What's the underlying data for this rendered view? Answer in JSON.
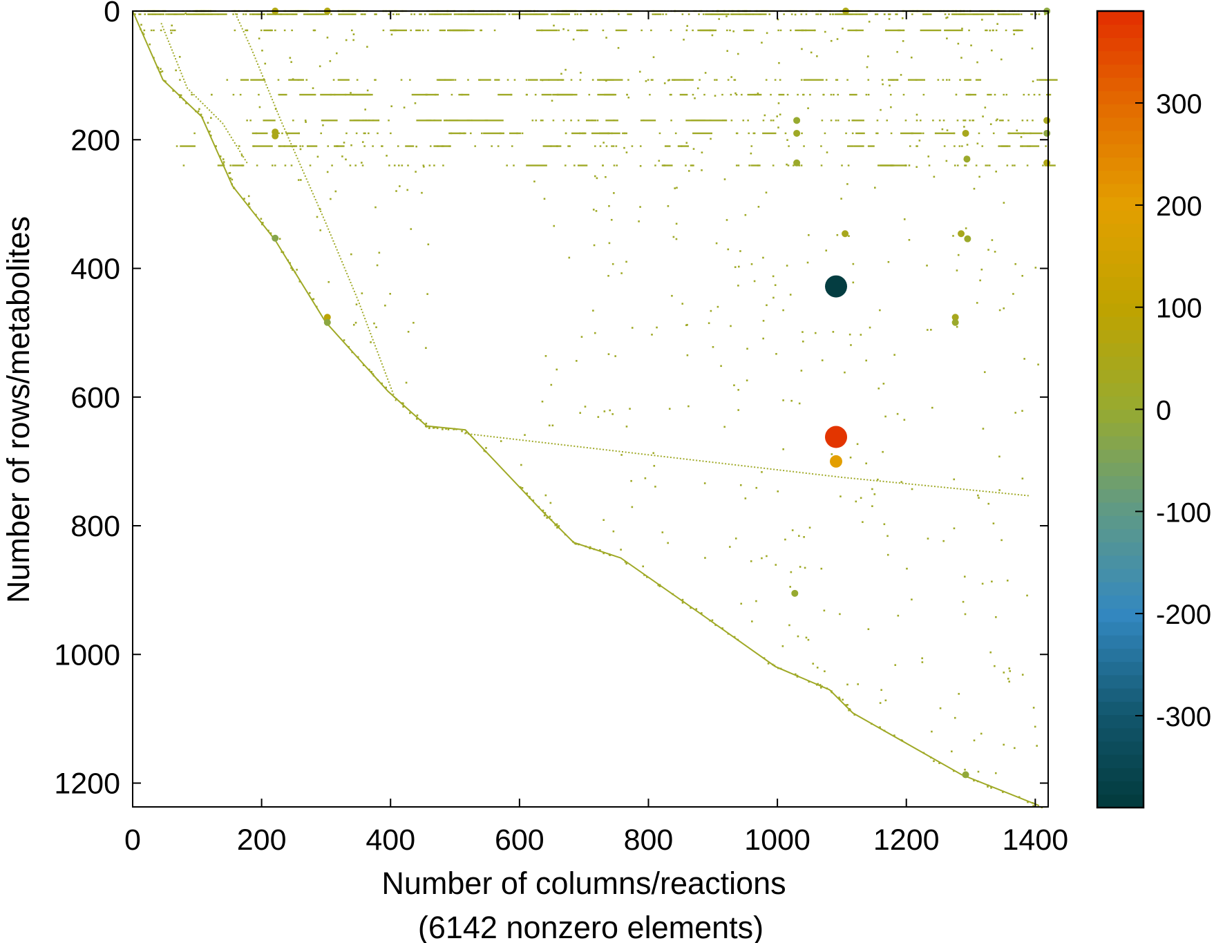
{
  "chart_data": {
    "type": "scatter",
    "title": "",
    "xlabel": "Number of columns/reactions",
    "xlabel_line2": "(6142 nonzero elements)",
    "ylabel": "Number of rows/metabolites",
    "xlim": [
      0,
      1420
    ],
    "ylim": [
      1237,
      0
    ],
    "y_inverted": true,
    "grid": false,
    "xticks": [
      0,
      200,
      400,
      600,
      800,
      1000,
      1200,
      1400
    ],
    "yticks": [
      0,
      200,
      400,
      600,
      800,
      1000,
      1200
    ],
    "nonzero_count": 6142,
    "default_color_value": 20,
    "colorbar": {
      "range": [
        -390,
        390
      ],
      "ticks": [
        -300,
        -200,
        -100,
        0,
        100,
        200,
        300
      ],
      "stops": [
        {
          "value": -390,
          "color": "#023a3c"
        },
        {
          "value": -300,
          "color": "#12566c"
        },
        {
          "value": -200,
          "color": "#3388c0"
        },
        {
          "value": -100,
          "color": "#5f9a86"
        },
        {
          "value": 0,
          "color": "#97aa30"
        },
        {
          "value": 100,
          "color": "#bfa300"
        },
        {
          "value": 200,
          "color": "#e39f00"
        },
        {
          "value": 300,
          "color": "#e36a00"
        },
        {
          "value": 390,
          "color": "#e32e00"
        }
      ]
    },
    "main_diagonal": [
      [
        0,
        0
      ],
      [
        47,
        107
      ],
      [
        107,
        164
      ],
      [
        155,
        272
      ],
      [
        221,
        356
      ],
      [
        299,
        483
      ],
      [
        396,
        591
      ],
      [
        456,
        645
      ],
      [
        516,
        651
      ],
      [
        636,
        778
      ],
      [
        684,
        826
      ],
      [
        757,
        850
      ],
      [
        877,
        934
      ],
      [
        997,
        1019
      ],
      [
        1081,
        1055
      ],
      [
        1117,
        1091
      ],
      [
        1286,
        1187
      ],
      [
        1406,
        1235
      ]
    ],
    "secondary_diagonals": [
      [
        [
          45,
          20
        ],
        [
          85,
          120
        ],
        [
          140,
          175
        ],
        [
          180,
          240
        ]
      ],
      [
        [
          160,
          5
        ],
        [
          185,
          60
        ],
        [
          230,
          170
        ],
        [
          300,
          330
        ],
        [
          350,
          450
        ],
        [
          410,
          610
        ]
      ],
      [
        [
          516,
          657
        ],
        [
          800,
          690
        ],
        [
          1100,
          725
        ],
        [
          1394,
          754
        ]
      ]
    ],
    "dense_rows": [
      0,
      5,
      30,
      107,
      130,
      170,
      190,
      210,
      240
    ],
    "large_entries": [
      {
        "col": 1091,
        "row": 428,
        "value": -380
      },
      {
        "col": 1091,
        "row": 662,
        "value": 380
      },
      {
        "col": 1091,
        "row": 700,
        "value": 200
      }
    ],
    "medium_entries": [
      {
        "col": 221,
        "row": 0,
        "value": 60
      },
      {
        "col": 302,
        "row": 0,
        "value": 60
      },
      {
        "col": 1106,
        "row": 0,
        "value": 50
      },
      {
        "col": 1418,
        "row": 0,
        "value": -20
      },
      {
        "col": 221,
        "row": 188,
        "value": 50
      },
      {
        "col": 221,
        "row": 194,
        "value": 50
      },
      {
        "col": 1030,
        "row": 170,
        "value": 0
      },
      {
        "col": 1030,
        "row": 190,
        "value": 20
      },
      {
        "col": 1030,
        "row": 236,
        "value": 10
      },
      {
        "col": 1292,
        "row": 190,
        "value": 40
      },
      {
        "col": 1418,
        "row": 170,
        "value": 40
      },
      {
        "col": 1418,
        "row": 190,
        "value": -20
      },
      {
        "col": 1418,
        "row": 236,
        "value": 60
      },
      {
        "col": 1294,
        "row": 230,
        "value": 10
      },
      {
        "col": 221,
        "row": 353,
        "value": -30
      },
      {
        "col": 1105,
        "row": 346,
        "value": 40
      },
      {
        "col": 1285,
        "row": 346,
        "value": 40
      },
      {
        "col": 1295,
        "row": 354,
        "value": 10
      },
      {
        "col": 302,
        "row": 476,
        "value": 90
      },
      {
        "col": 302,
        "row": 484,
        "value": -20
      },
      {
        "col": 1276,
        "row": 476,
        "value": 40
      },
      {
        "col": 1276,
        "row": 484,
        "value": 10
      },
      {
        "col": 1292,
        "row": 1187,
        "value": -10
      },
      {
        "col": 1027,
        "row": 905,
        "value": 0
      }
    ]
  }
}
